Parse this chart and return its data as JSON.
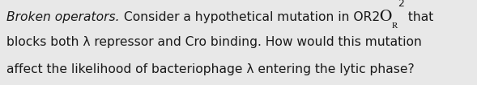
{
  "background_color": "#e8e8e8",
  "text_color": "#1a1a1a",
  "italic_part": "Broken operators.",
  "line1_mid": " Consider a hypothetical mutation in OR2",
  "line1_end": " that",
  "line2": "blocks both λ repressor and Cro binding. How would this mutation",
  "line3": "affect the likelihood of bacteriophage λ entering the lytic phase?",
  "fontsize": 11.2,
  "fig_width": 5.89,
  "fig_height": 1.06,
  "dpi": 100
}
